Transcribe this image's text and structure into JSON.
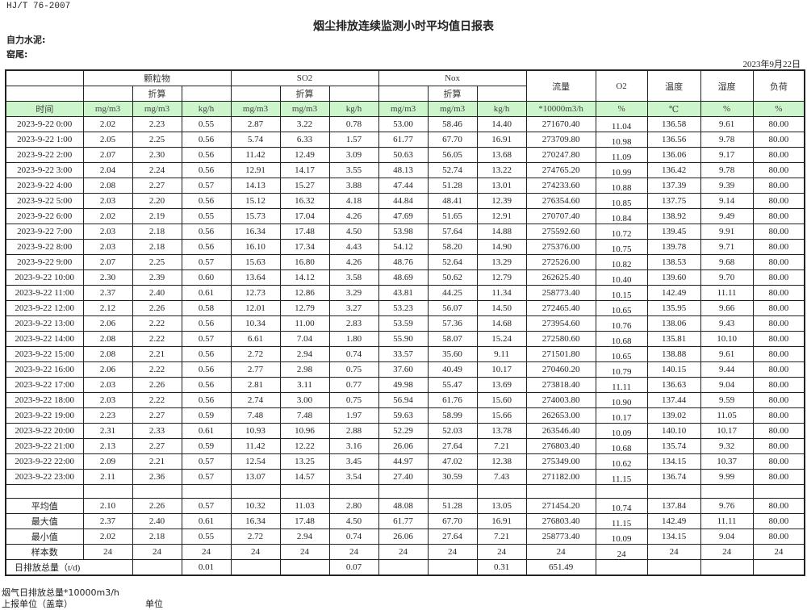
{
  "standard": "HJ/T  76-2007",
  "title": "烟尘排放连续监测小时平均值日报表",
  "company": "自力水泥:",
  "location": "窑尾:",
  "report_date": "2023年9月22日",
  "header": {
    "groups": [
      "颗粒物",
      "SO2",
      "Nox"
    ],
    "converted": "折算",
    "single": [
      "流量",
      "O2",
      "温度",
      "湿度",
      "负荷"
    ],
    "units": [
      "时间",
      "mg/m3",
      "mg/m3",
      "kg/h",
      "mg/m3",
      "mg/m3",
      "kg/h",
      "mg/m3",
      "mg/m3",
      "kg/h",
      "*10000m3/h",
      "%",
      "℃",
      "%",
      "%"
    ]
  },
  "rows": [
    [
      "2023-9-22 0:00",
      "2.02",
      "2.23",
      "0.55",
      "2.87",
      "3.22",
      "0.78",
      "53.00",
      "58.46",
      "14.40",
      "271670.40",
      "11.04",
      "136.58",
      "9.61",
      "80.00"
    ],
    [
      "2023-9-22 1:00",
      "2.05",
      "2.25",
      "0.56",
      "5.74",
      "6.33",
      "1.57",
      "61.77",
      "67.70",
      "16.91",
      "273709.80",
      "10.98",
      "136.56",
      "9.78",
      "80.00"
    ],
    [
      "2023-9-22 2:00",
      "2.07",
      "2.30",
      "0.56",
      "11.42",
      "12.49",
      "3.09",
      "50.63",
      "56.05",
      "13.68",
      "270247.80",
      "11.09",
      "136.06",
      "9.17",
      "80.00"
    ],
    [
      "2023-9-22 3:00",
      "2.04",
      "2.24",
      "0.56",
      "12.91",
      "14.17",
      "3.55",
      "48.13",
      "52.74",
      "13.22",
      "274765.20",
      "10.99",
      "136.42",
      "9.78",
      "80.00"
    ],
    [
      "2023-9-22 4:00",
      "2.08",
      "2.27",
      "0.57",
      "14.13",
      "15.27",
      "3.88",
      "47.44",
      "51.28",
      "13.01",
      "274233.60",
      "10.88",
      "137.39",
      "9.39",
      "80.00"
    ],
    [
      "2023-9-22 5:00",
      "2.03",
      "2.20",
      "0.56",
      "15.12",
      "16.32",
      "4.18",
      "44.84",
      "48.41",
      "12.39",
      "276354.60",
      "10.85",
      "137.75",
      "9.14",
      "80.00"
    ],
    [
      "2023-9-22 6:00",
      "2.02",
      "2.19",
      "0.55",
      "15.73",
      "17.04",
      "4.26",
      "47.69",
      "51.65",
      "12.91",
      "270707.40",
      "10.84",
      "138.92",
      "9.49",
      "80.00"
    ],
    [
      "2023-9-22 7:00",
      "2.03",
      "2.18",
      "0.56",
      "16.34",
      "17.48",
      "4.50",
      "53.98",
      "57.64",
      "14.88",
      "275592.60",
      "10.72",
      "139.45",
      "9.91",
      "80.00"
    ],
    [
      "2023-9-22 8:00",
      "2.03",
      "2.18",
      "0.56",
      "16.10",
      "17.34",
      "4.43",
      "54.12",
      "58.20",
      "14.90",
      "275376.00",
      "10.75",
      "139.78",
      "9.71",
      "80.00"
    ],
    [
      "2023-9-22 9:00",
      "2.07",
      "2.25",
      "0.57",
      "15.63",
      "16.80",
      "4.26",
      "48.76",
      "52.64",
      "13.29",
      "272526.00",
      "10.82",
      "138.53",
      "9.68",
      "80.00"
    ],
    [
      "2023-9-22 10:00",
      "2.30",
      "2.39",
      "0.60",
      "13.64",
      "14.12",
      "3.58",
      "48.69",
      "50.62",
      "12.79",
      "262625.40",
      "10.40",
      "139.60",
      "9.70",
      "80.00"
    ],
    [
      "2023-9-22 11:00",
      "2.37",
      "2.40",
      "0.61",
      "12.73",
      "12.86",
      "3.29",
      "43.81",
      "44.25",
      "11.34",
      "258773.40",
      "10.15",
      "142.49",
      "11.11",
      "80.00"
    ],
    [
      "2023-9-22 12:00",
      "2.12",
      "2.26",
      "0.58",
      "12.01",
      "12.79",
      "3.27",
      "53.23",
      "56.07",
      "14.50",
      "272465.40",
      "10.65",
      "135.95",
      "9.66",
      "80.00"
    ],
    [
      "2023-9-22 13:00",
      "2.06",
      "2.22",
      "0.56",
      "10.34",
      "11.00",
      "2.83",
      "53.59",
      "57.36",
      "14.68",
      "273954.60",
      "10.76",
      "138.06",
      "9.43",
      "80.00"
    ],
    [
      "2023-9-22 14:00",
      "2.08",
      "2.22",
      "0.57",
      "6.61",
      "7.04",
      "1.80",
      "55.90",
      "58.07",
      "15.24",
      "272580.60",
      "10.68",
      "135.81",
      "10.10",
      "80.00"
    ],
    [
      "2023-9-22 15:00",
      "2.08",
      "2.21",
      "0.56",
      "2.72",
      "2.94",
      "0.74",
      "33.57",
      "35.60",
      "9.11",
      "271501.80",
      "10.65",
      "138.88",
      "9.61",
      "80.00"
    ],
    [
      "2023-9-22 16:00",
      "2.06",
      "2.22",
      "0.56",
      "2.77",
      "2.98",
      "0.75",
      "37.60",
      "40.49",
      "10.17",
      "270460.20",
      "10.79",
      "140.15",
      "9.44",
      "80.00"
    ],
    [
      "2023-9-22 17:00",
      "2.03",
      "2.26",
      "0.56",
      "2.81",
      "3.11",
      "0.77",
      "49.98",
      "55.47",
      "13.69",
      "273818.40",
      "11.11",
      "136.63",
      "9.04",
      "80.00"
    ],
    [
      "2023-9-22 18:00",
      "2.03",
      "2.22",
      "0.56",
      "2.74",
      "3.00",
      "0.75",
      "56.94",
      "61.76",
      "15.60",
      "274003.80",
      "10.90",
      "137.44",
      "9.59",
      "80.00"
    ],
    [
      "2023-9-22 19:00",
      "2.23",
      "2.27",
      "0.59",
      "7.48",
      "7.48",
      "1.97",
      "59.63",
      "58.99",
      "15.66",
      "262653.00",
      "10.17",
      "139.02",
      "11.05",
      "80.00"
    ],
    [
      "2023-9-22 20:00",
      "2.31",
      "2.33",
      "0.61",
      "10.93",
      "10.96",
      "2.88",
      "52.29",
      "52.03",
      "13.78",
      "263546.40",
      "10.09",
      "140.10",
      "10.17",
      "80.00"
    ],
    [
      "2023-9-22 21:00",
      "2.13",
      "2.27",
      "0.59",
      "11.42",
      "12.22",
      "3.16",
      "26.06",
      "27.64",
      "7.21",
      "276803.40",
      "10.68",
      "135.74",
      "9.32",
      "80.00"
    ],
    [
      "2023-9-22 22:00",
      "2.09",
      "2.21",
      "0.57",
      "12.54",
      "13.25",
      "3.45",
      "44.97",
      "47.02",
      "12.38",
      "275349.00",
      "10.62",
      "134.15",
      "10.37",
      "80.00"
    ],
    [
      "2023-9-22 23:00",
      "2.11",
      "2.36",
      "0.57",
      "13.07",
      "14.57",
      "3.54",
      "27.40",
      "30.59",
      "7.43",
      "271182.00",
      "11.15",
      "136.74",
      "9.99",
      "80.00"
    ]
  ],
  "stats": [
    [
      "平均值",
      "2.10",
      "2.26",
      "0.57",
      "10.32",
      "11.03",
      "2.80",
      "48.08",
      "51.28",
      "13.05",
      "271454.20",
      "10.74",
      "137.84",
      "9.76",
      "80.00"
    ],
    [
      "最大值",
      "2.37",
      "2.40",
      "0.61",
      "16.34",
      "17.48",
      "4.50",
      "61.77",
      "67.70",
      "16.91",
      "276803.40",
      "11.15",
      "142.49",
      "11.11",
      "80.00"
    ],
    [
      "最小值",
      "2.02",
      "2.18",
      "0.55",
      "2.72",
      "2.94",
      "0.74",
      "26.06",
      "27.64",
      "7.21",
      "258773.40",
      "10.09",
      "134.15",
      "9.04",
      "80.00"
    ],
    [
      "样本数",
      "24",
      "24",
      "24",
      "24",
      "24",
      "24",
      "24",
      "24",
      "24",
      "24",
      "24",
      "24",
      "24",
      "24"
    ]
  ],
  "daily_total": {
    "label": "日排放总量（t/d)",
    "values": [
      "",
      "0.01",
      "",
      "",
      "0.07",
      "",
      "",
      "0.31",
      "651.49",
      "",
      "",
      "",
      ""
    ]
  },
  "footer": {
    "flue_gas_total": "烟气日排放总量*10000m3/h",
    "reporting_unit": "上报单位（盖章）",
    "unit": "单位"
  },
  "colors": {
    "unit_row_bg": "#ccf5cc",
    "border": "#222222"
  }
}
